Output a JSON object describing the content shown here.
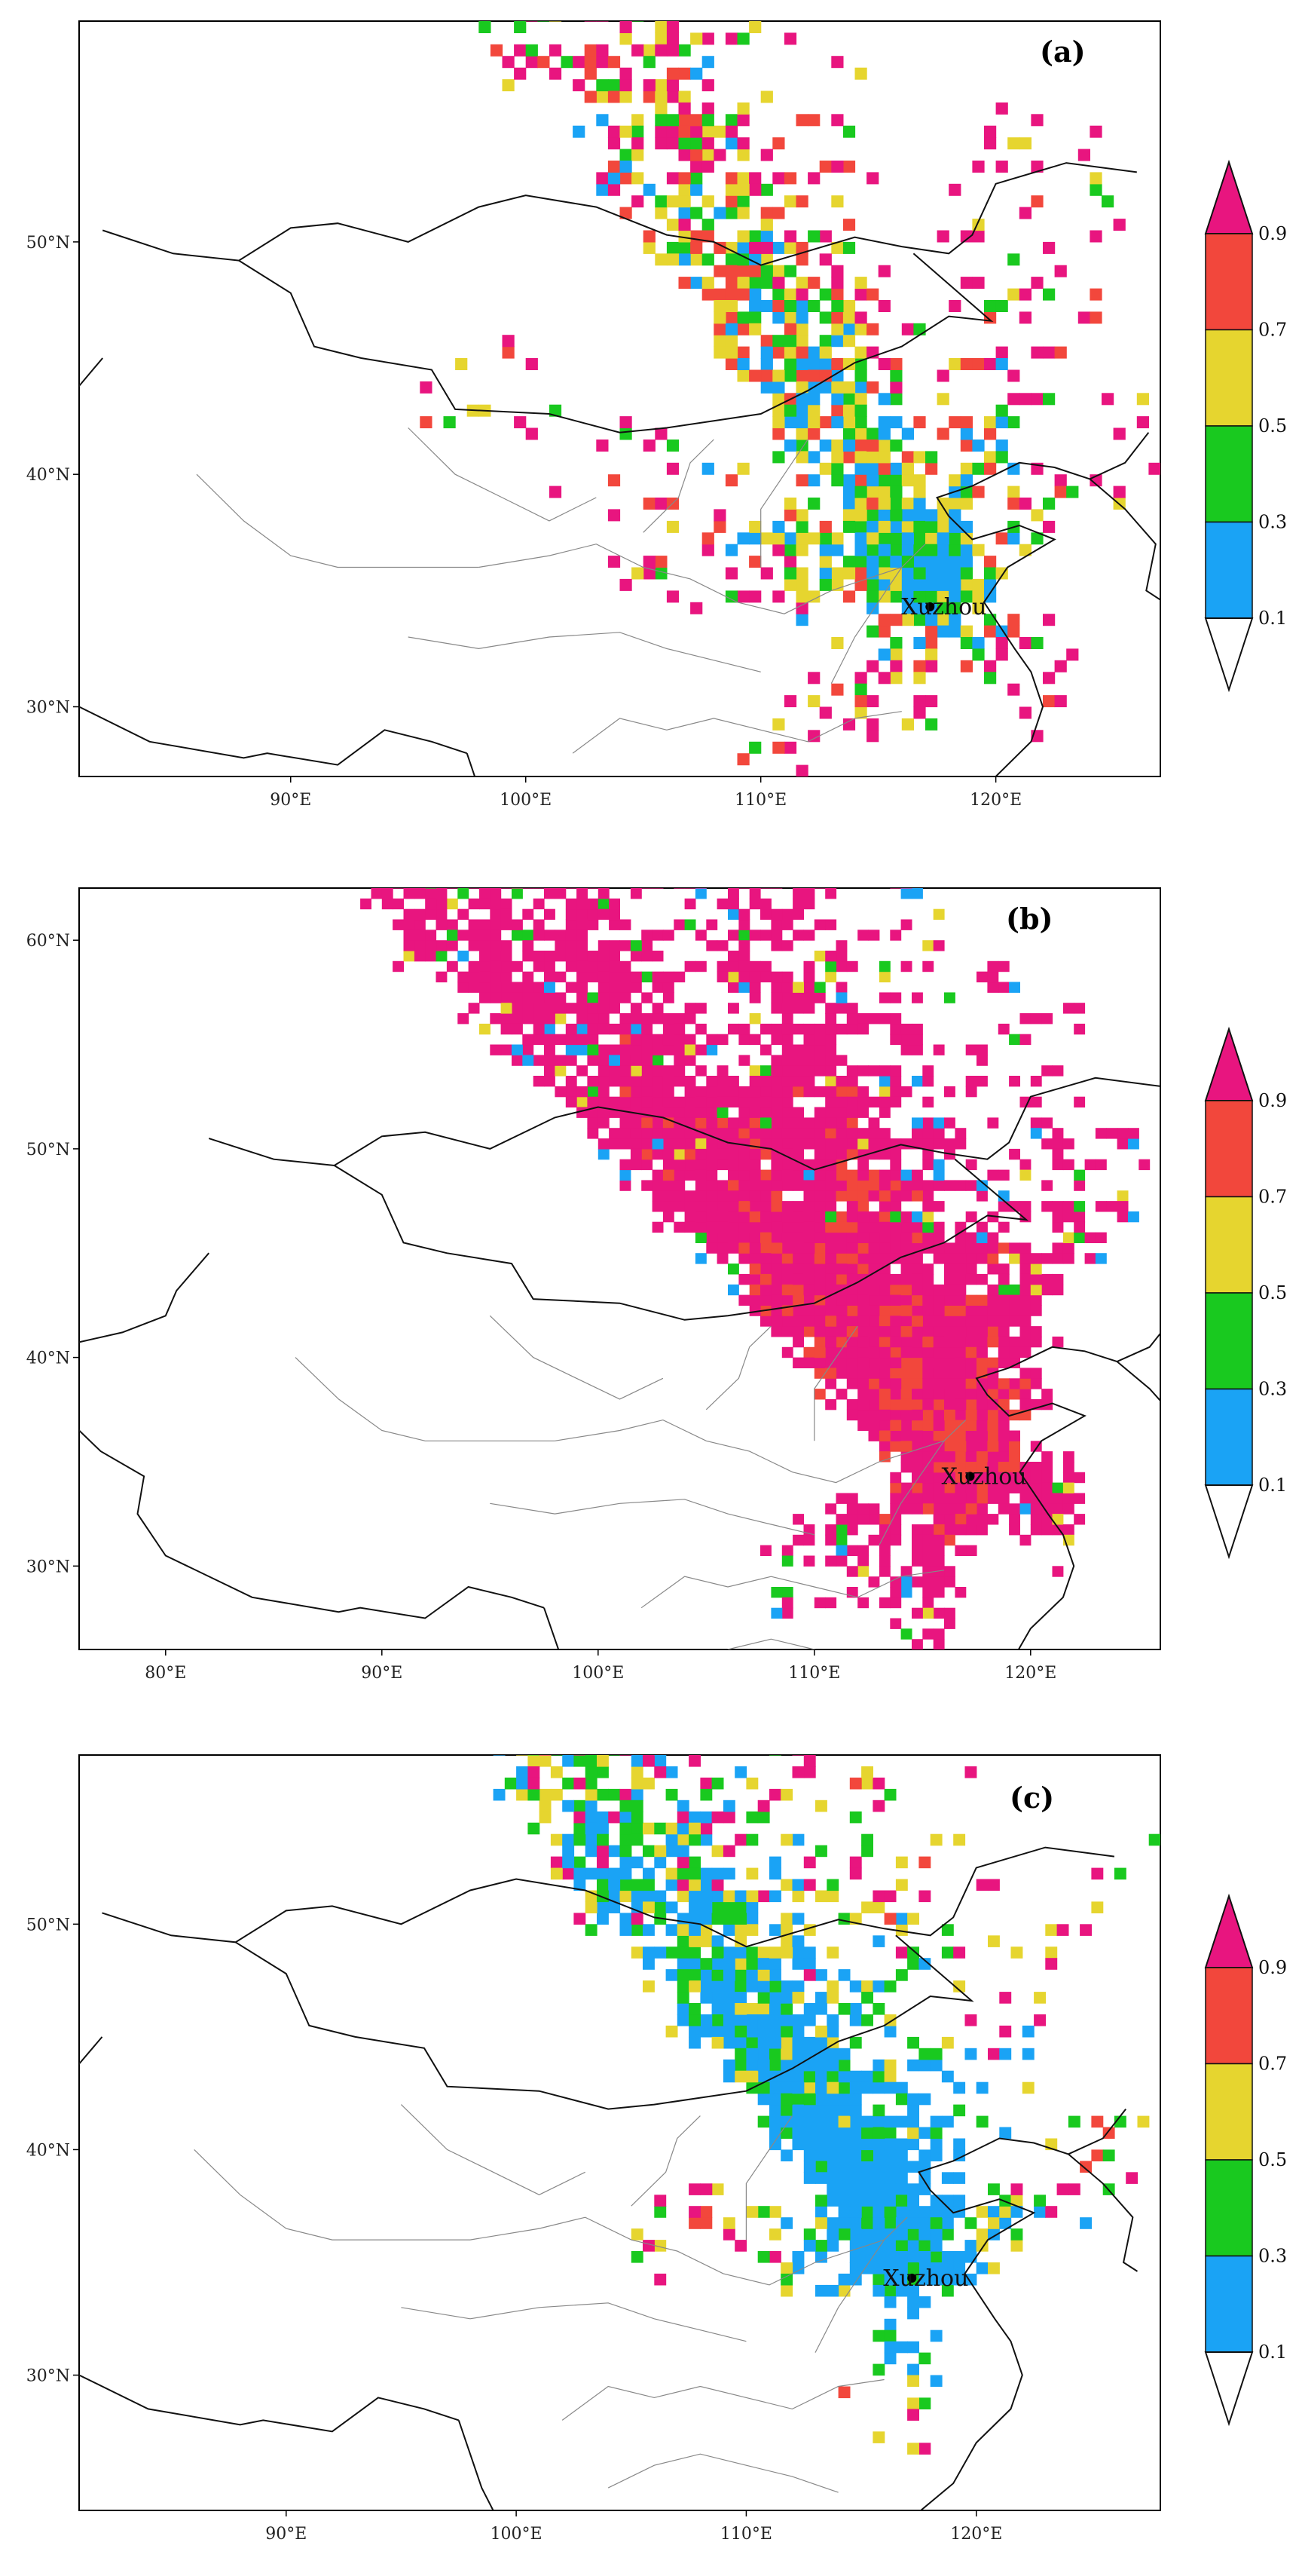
{
  "colorbar": {
    "ticks": [
      "0.1",
      "0.3",
      "0.5",
      "0.7",
      "0.9"
    ],
    "colors": [
      "#1aa3f5",
      "#19c91f",
      "#e6d52f",
      "#f2473c",
      "#e8157f"
    ],
    "under_color": "#ffffff"
  },
  "city": {
    "name": "Xuzhou",
    "lon": 117.2,
    "lat": 34.3
  },
  "panels": [
    {
      "label": "(a)",
      "lon_range": [
        81,
        127
      ],
      "lat_range": [
        27,
        59.5
      ],
      "lon_ticks": [
        {
          "v": 90,
          "t": "90°E"
        },
        {
          "v": 100,
          "t": "100°E"
        },
        {
          "v": 110,
          "t": "110°E"
        },
        {
          "v": 120,
          "t": "120°E"
        }
      ],
      "lat_ticks": [
        {
          "v": 30,
          "t": "30°N"
        },
        {
          "v": 40,
          "t": "40°N"
        },
        {
          "v": 50,
          "t": "50°N"
        }
      ],
      "footprint": "mixed"
    },
    {
      "label": "(b)",
      "lon_range": [
        76,
        126
      ],
      "lat_range": [
        26,
        62.5
      ],
      "lon_ticks": [
        {
          "v": 80,
          "t": "80°E"
        },
        {
          "v": 90,
          "t": "90°E"
        },
        {
          "v": 100,
          "t": "100°E"
        },
        {
          "v": 110,
          "t": "110°E"
        },
        {
          "v": 120,
          "t": "120°E"
        }
      ],
      "lat_ticks": [
        {
          "v": 30,
          "t": "30°N"
        },
        {
          "v": 40,
          "t": "40°N"
        },
        {
          "v": 50,
          "t": "50°N"
        },
        {
          "v": 60,
          "t": "60°N"
        }
      ],
      "footprint": "high"
    },
    {
      "label": "(c)",
      "lon_range": [
        81,
        128
      ],
      "lat_range": [
        24,
        57.5
      ],
      "lon_ticks": [
        {
          "v": 90,
          "t": "90°E"
        },
        {
          "v": 100,
          "t": "100°E"
        },
        {
          "v": 110,
          "t": "110°E"
        },
        {
          "v": 120,
          "t": "120°E"
        }
      ],
      "lat_ticks": [
        {
          "v": 30,
          "t": "30°N"
        },
        {
          "v": 40,
          "t": "40°N"
        },
        {
          "v": 50,
          "t": "50°N"
        }
      ],
      "footprint": "low"
    }
  ]
}
